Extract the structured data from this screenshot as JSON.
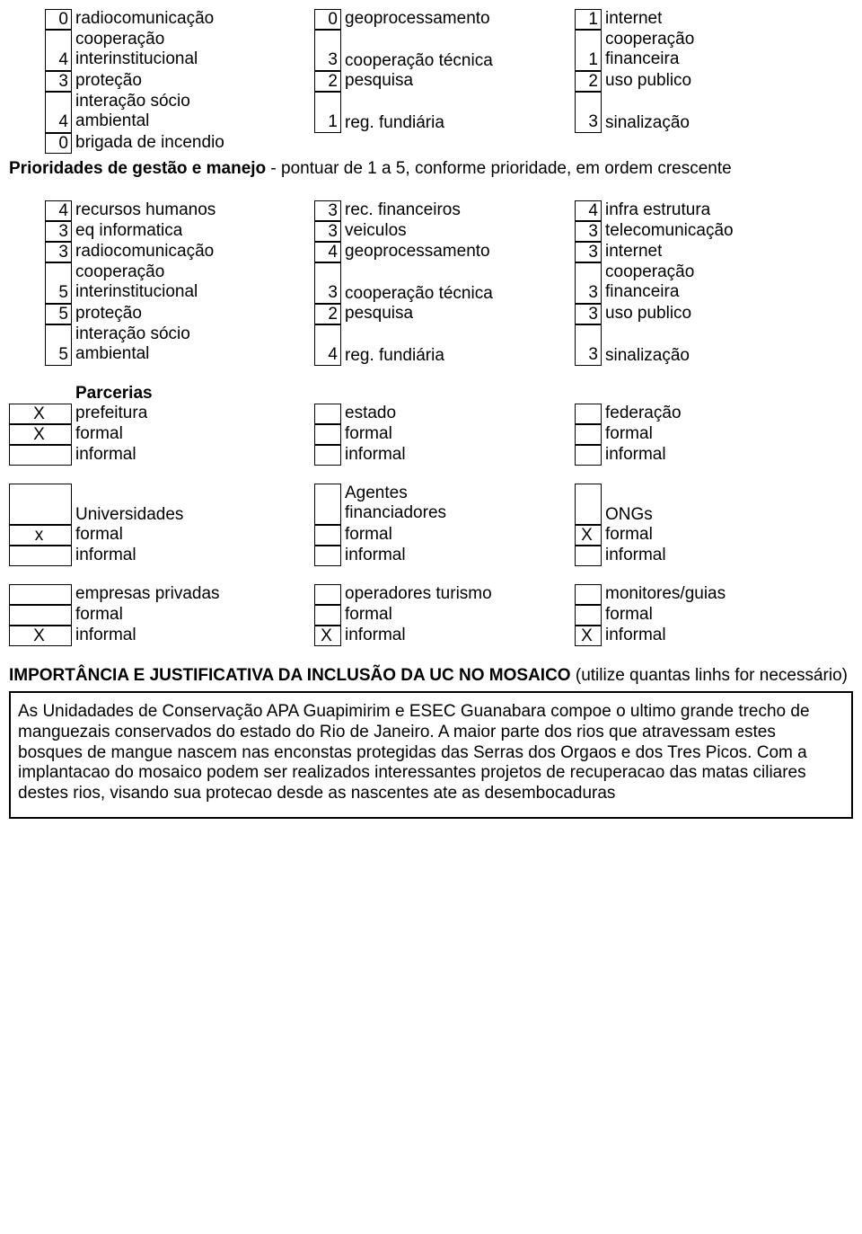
{
  "block1": {
    "col1": [
      {
        "v": "0",
        "l": "radiocomunicação"
      },
      {
        "v": "4",
        "l": "cooperação interinstitucional",
        "wrap": true
      },
      {
        "v": "3",
        "l": "proteção"
      },
      {
        "v": "4",
        "l": "interação sócio ambiental",
        "wrap": true
      },
      {
        "v": "0",
        "l": "brigada de incendio"
      }
    ],
    "col2": [
      {
        "v": "0",
        "l": "geoprocessamento"
      },
      {
        "v": "3",
        "l": "cooperação técnica",
        "pad": true
      },
      {
        "v": "2",
        "l": "pesquisa"
      },
      {
        "v": "1",
        "l": "reg. fundiária",
        "pad": true
      }
    ],
    "col3": [
      {
        "v": "1",
        "l": "internet"
      },
      {
        "v": "1",
        "l": "cooperação financeira",
        "wrap": true
      },
      {
        "v": "2",
        "l": "uso publico"
      },
      {
        "v": "3",
        "l": "sinalização",
        "pad": true
      }
    ]
  },
  "sec_title": {
    "bold": "Prioridades de gestão e manejo",
    "rest": " - pontuar de 1 a 5, conforme prioridade, em ordem crescente"
  },
  "block2": {
    "col1": [
      {
        "v": "4",
        "l": "recursos humanos"
      },
      {
        "v": "3",
        "l": "eq informatica"
      },
      {
        "v": "3",
        "l": "radiocomunicação"
      },
      {
        "v": "5",
        "l": "cooperação interinstitucional",
        "wrap": true
      },
      {
        "v": "5",
        "l": "proteção"
      },
      {
        "v": "5",
        "l": "interação sócio ambiental",
        "wrap": true
      }
    ],
    "col2": [
      {
        "v": "3",
        "l": "rec. financeiros"
      },
      {
        "v": "3",
        "l": "veiculos"
      },
      {
        "v": "4",
        "l": "geoprocessamento"
      },
      {
        "v": "3",
        "l": "cooperação técnica",
        "pad": true
      },
      {
        "v": "2",
        "l": "pesquisa"
      },
      {
        "v": "4",
        "l": "reg. fundiária",
        "pad": true
      }
    ],
    "col3": [
      {
        "v": "4",
        "l": "infra estrutura"
      },
      {
        "v": "3",
        "l": "telecomunicação"
      },
      {
        "v": "3",
        "l": "internet"
      },
      {
        "v": "3",
        "l": "cooperação financeira",
        "wrap": true
      },
      {
        "v": "3",
        "l": "uso publico"
      },
      {
        "v": "3",
        "l": "sinalização",
        "pad": true
      }
    ]
  },
  "parcerias_label": "Parcerias",
  "p1": {
    "col1": [
      {
        "v": "X",
        "l": "prefeitura"
      },
      {
        "v": "X",
        "l": "formal"
      },
      {
        "v": "",
        "l": "informal"
      }
    ],
    "col2": [
      {
        "v": "",
        "l": "estado"
      },
      {
        "v": "",
        "l": "formal"
      },
      {
        "v": "",
        "l": "informal"
      }
    ],
    "col3": [
      {
        "v": "",
        "l": "federação"
      },
      {
        "v": "",
        "l": "formal"
      },
      {
        "v": "",
        "l": "informal"
      }
    ]
  },
  "p2": {
    "col1": [
      {
        "v": "",
        "l": "Universidades",
        "pad": true
      },
      {
        "v": "x",
        "l": "formal"
      },
      {
        "v": "",
        "l": "informal"
      }
    ],
    "col2": [
      {
        "v": "",
        "l": "Agentes financiadores",
        "wrap": true
      },
      {
        "v": "",
        "l": "formal"
      },
      {
        "v": "",
        "l": "informal"
      }
    ],
    "col3": [
      {
        "v": "",
        "l": "ONGs",
        "pad": true
      },
      {
        "v": "X",
        "l": "formal"
      },
      {
        "v": "",
        "l": "informal"
      }
    ]
  },
  "p3": {
    "col1": [
      {
        "v": "",
        "l": "empresas privadas"
      },
      {
        "v": "",
        "l": "formal"
      },
      {
        "v": "X",
        "l": "informal"
      }
    ],
    "col2": [
      {
        "v": "",
        "l": "operadores turismo"
      },
      {
        "v": "",
        "l": "formal"
      },
      {
        "v": "X",
        "l": "informal"
      }
    ],
    "col3": [
      {
        "v": "",
        "l": "monitores/guias"
      },
      {
        "v": "",
        "l": "formal"
      },
      {
        "v": "X",
        "l": "informal"
      }
    ]
  },
  "imp_title": "IMPORTÂNCIA E JUSTIFICATIVA DA INCLUSÃO DA UC NO MOSAICO",
  "imp_rest": " (utilize quantas linhs for necessário)",
  "textblock": "As Unidadades de Conservação APA Guapimirim e ESEC Guanabara compoe o ultimo grande trecho de manguezais conservados do estado do Rio de Janeiro. A maior parte dos rios que atravessam estes bosques de mangue nascem nas enconstas protegidas das Serras dos Orgaos e dos Tres Picos. Com a implantacao do mosaico podem ser realizados interessantes projetos de recuperacao das matas ciliares destes rios, visando sua protecao desde as nascentes ate as desembocaduras"
}
